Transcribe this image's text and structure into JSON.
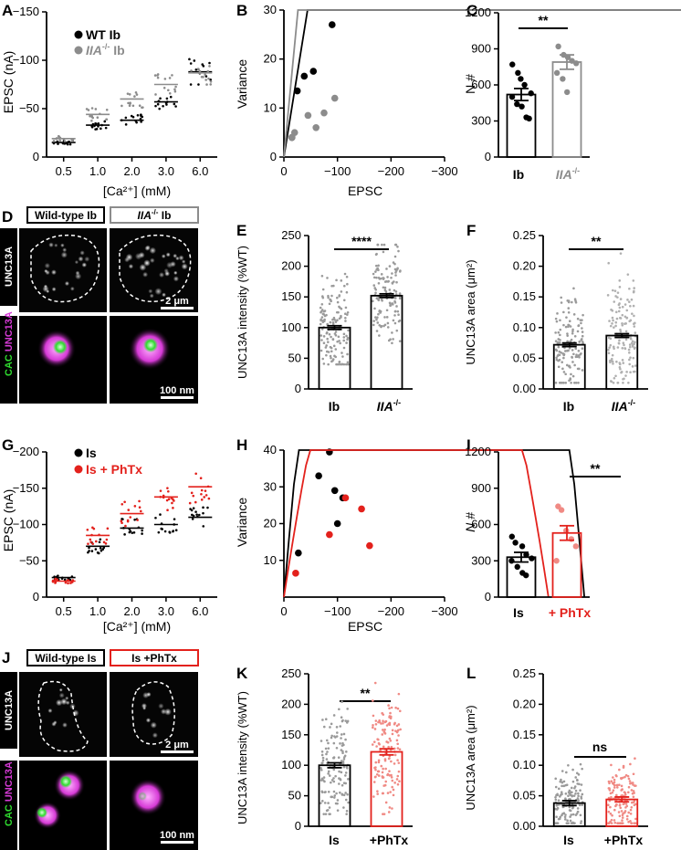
{
  "colors": {
    "wt": "#000000",
    "mut": "#8c8c8c",
    "phtx": "#e3211c",
    "phtx_light": "#f08a84",
    "magenta": "#d63ad6",
    "green": "#2fdc2f"
  },
  "panels": {
    "A": "A",
    "B": "B",
    "C": "C",
    "D": "D",
    "E": "E",
    "F": "F",
    "G": "G",
    "H": "H",
    "I": "I",
    "J": "J",
    "K": "K",
    "L": "L"
  },
  "labels": {
    "epsc_na": "EPSC (nA)",
    "ca_mM": "[Ca²⁺] (mM)",
    "variance": "Variance",
    "epsc": "EPSC",
    "n_hash": "N #",
    "unc13a_int": "UNC13A intensity (%WT)",
    "unc13a_area": "UNC13A area (μm²)",
    "unc13a": "UNC13A",
    "cac": "CAC",
    "legend_wt_ib": "WT Ib",
    "legend_mut_ib_pre": "IIA",
    "legend_mut_ib_sup": "-/-",
    "legend_mut_ib_post": " Ib",
    "legend_is": "Is",
    "legend_is_phtx": "Is + PhTx",
    "cat_ib": "Ib",
    "cat_mut_pre": "IIA",
    "cat_mut_sup": "-/-",
    "cat_is": "Is",
    "cat_phtx": "+ PhTx",
    "cat_phtx2": "+PhTx",
    "sig_cc": "**",
    "sig_e": "****",
    "sig_f": "**",
    "sig_i": "**",
    "sig_k": "**",
    "sig_l": "ns",
    "img_d_left": "Wild-type Ib",
    "img_d_right_pre": "IIA",
    "img_d_right_sup": "-/-",
    "img_d_right_post": " Ib",
    "img_j_left": "Wild-type Is",
    "img_j_right": "Is +PhTx",
    "scale_2um": "2 μm",
    "scale_100nm": "100 nm"
  },
  "chart_data": [
    {
      "panel": "A",
      "type": "scatter",
      "categories": [
        "0.5",
        "1.0",
        "2.0",
        "3.0",
        "6.0"
      ],
      "ylim": [
        0,
        -150
      ],
      "yticks": [
        0,
        -50,
        -100,
        -150
      ],
      "series": [
        {
          "name": "WT Ib",
          "color": "#000000",
          "means": [
            -15,
            -33,
            -38,
            -57,
            -88
          ]
        },
        {
          "name": "IIA-/- Ib",
          "color": "#8c8c8c",
          "means": [
            -19,
            -44,
            -60,
            -75,
            -87
          ]
        }
      ],
      "xlabel": "[Ca²⁺] (mM)",
      "ylabel": "EPSC (nA)"
    },
    {
      "panel": "B",
      "type": "scatter",
      "xlim": [
        0,
        -300
      ],
      "ylim": [
        0,
        30
      ],
      "xticks": [
        0,
        -100,
        -200,
        -300
      ],
      "yticks": [
        0,
        10,
        20,
        30
      ],
      "series": [
        {
          "color": "#000000",
          "points": [
            [
              -15,
              4
            ],
            [
              -25,
              13.5
            ],
            [
              -38,
              16.5
            ],
            [
              -55,
              17.5
            ],
            [
              -90,
              27
            ]
          ],
          "curve": {
            "q": 3.4,
            "N": 780
          }
        },
        {
          "color": "#8c8c8c",
          "points": [
            [
              -15,
              4
            ],
            [
              -20,
              5
            ],
            [
              -45,
              8.5
            ],
            [
              -60,
              6
            ],
            [
              -75,
              9
            ],
            [
              -95,
              12
            ]
          ],
          "curve": {
            "q": 2.0,
            "N": 790
          }
        }
      ],
      "xlabel": "EPSC",
      "ylabel": "Variance"
    },
    {
      "panel": "C",
      "type": "bar",
      "categories": [
        "Ib",
        "IIA-/-"
      ],
      "values": [
        520,
        790
      ],
      "sem": [
        50,
        60
      ],
      "ylim": [
        0,
        1200
      ],
      "yticks": [
        0,
        300,
        600,
        900,
        1200
      ],
      "points": [
        [
          770,
          700,
          650,
          600,
          530,
          500,
          440,
          420,
          330,
          320
        ],
        [
          920,
          850,
          830,
          800,
          780,
          700,
          650,
          540
        ]
      ],
      "ylabel": "N #"
    },
    {
      "panel": "E",
      "type": "bar",
      "categories": [
        "Ib",
        "IIA-/-"
      ],
      "values": [
        100,
        152
      ],
      "sem": [
        3,
        3
      ],
      "ylim": [
        0,
        250
      ],
      "yticks": [
        0,
        50,
        100,
        150,
        200,
        250
      ],
      "spread": [
        [
          40,
          195
        ],
        [
          70,
          235
        ]
      ],
      "ylabel": "UNC13A intensity (%WT)"
    },
    {
      "panel": "F",
      "type": "bar",
      "categories": [
        "Ib",
        "IIA-/-"
      ],
      "values": [
        0.072,
        0.087
      ],
      "sem": [
        0.003,
        0.003
      ],
      "ylim": [
        0,
        0.25
      ],
      "yticks": [
        0,
        0.05,
        0.1,
        0.15,
        0.2,
        0.25
      ],
      "spread": [
        [
          0.01,
          0.185
        ],
        [
          0.01,
          0.225
        ]
      ],
      "ylabel": "UNC13A area (μm²)"
    },
    {
      "panel": "G",
      "type": "scatter",
      "categories": [
        "0.5",
        "1.0",
        "2.0",
        "3.0",
        "6.0"
      ],
      "ylim": [
        0,
        -200
      ],
      "yticks": [
        0,
        -50,
        -100,
        -150,
        -200
      ],
      "series": [
        {
          "name": "Is",
          "color": "#000000",
          "means": [
            -27,
            -70,
            -95,
            -100,
            -110
          ]
        },
        {
          "name": "Is + PhTx",
          "color": "#e3211c",
          "means": [
            -22,
            -85,
            -115,
            -138,
            -152
          ]
        }
      ],
      "xlabel": "[Ca²⁺] (mM)",
      "ylabel": "EPSC (nA)"
    },
    {
      "panel": "H",
      "type": "scatter",
      "xlim": [
        0,
        -300
      ],
      "ylim": [
        0,
        40
      ],
      "xticks": [
        0,
        -100,
        -200,
        -300
      ],
      "yticks": [
        10,
        20,
        30,
        40
      ],
      "series": [
        {
          "color": "#000000",
          "points": [
            [
              -27,
              12
            ],
            [
              -65,
              33
            ],
            [
              -85,
              39.5
            ],
            [
              -95,
              29
            ],
            [
              -100,
              20
            ],
            [
              -110,
              27
            ]
          ],
          "curve": {
            "q": 1.7,
            "N": 330
          }
        },
        {
          "color": "#e3211c",
          "points": [
            [
              -22,
              6.5
            ],
            [
              -85,
              17
            ],
            [
              -115,
              27
            ],
            [
              -145,
              24
            ],
            [
              -160,
              14
            ]
          ],
          "curve": {
            "q": 0.95,
            "N": 520
          }
        }
      ],
      "xlabel": "EPSC",
      "ylabel": "Variance"
    },
    {
      "panel": "I",
      "type": "bar",
      "categories": [
        "Is",
        "+ PhTx"
      ],
      "values": [
        330,
        530
      ],
      "sem": [
        40,
        60
      ],
      "ylim": [
        0,
        1200
      ],
      "yticks": [
        0,
        300,
        600,
        900,
        1200
      ],
      "points": [
        [
          500,
          450,
          420,
          350,
          320,
          300,
          250,
          200,
          180
        ],
        [
          750,
          720,
          550,
          480,
          420,
          300
        ]
      ],
      "ylabel": "N #"
    },
    {
      "panel": "K",
      "type": "bar",
      "categories": [
        "Is",
        "+PhTx"
      ],
      "values": [
        100,
        122
      ],
      "sem": [
        4,
        5
      ],
      "ylim": [
        0,
        250
      ],
      "yticks": [
        0,
        50,
        100,
        150,
        200,
        250
      ],
      "spread": [
        [
          20,
          215
        ],
        [
          20,
          235
        ]
      ],
      "ylabel": "UNC13A intensity (%WT)"
    },
    {
      "panel": "L",
      "type": "bar",
      "categories": [
        "Is",
        "+PhTx"
      ],
      "values": [
        0.038,
        0.044
      ],
      "sem": [
        0.004,
        0.004
      ],
      "ylim": [
        0,
        0.25
      ],
      "yticks": [
        0,
        0.05,
        0.1,
        0.15,
        0.2,
        0.25
      ],
      "spread": [
        [
          0.005,
          0.12
        ],
        [
          0.005,
          0.12
        ]
      ],
      "ylabel": "UNC13A area (μm²)"
    }
  ]
}
